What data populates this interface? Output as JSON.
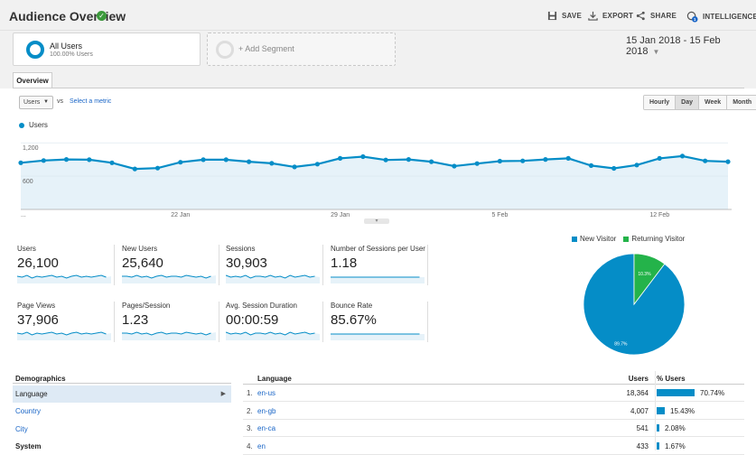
{
  "header": {
    "title": "Audience Overview",
    "save": "SAVE",
    "export": "EXPORT",
    "share": "SHARE",
    "intelligence": "INTELLIGENCE",
    "intelligence_badge": "1"
  },
  "segments": {
    "active": {
      "name": "All Users",
      "sub": "100.00% Users"
    },
    "add": "+ Add Segment"
  },
  "date_range": "15 Jan 2018 - 15 Feb 2018",
  "tabs": [
    "Overview"
  ],
  "chart_controls": {
    "metric": "Users",
    "vs": "vs",
    "select_metric": "Select a metric",
    "granularity": [
      "Hourly",
      "Day",
      "Week",
      "Month"
    ],
    "active_granularity": "Day"
  },
  "chart_data": {
    "type": "line",
    "series": [
      {
        "name": "Users",
        "values": [
          840,
          880,
          900,
          895,
          840,
          730,
          745,
          850,
          895,
          895,
          860,
          830,
          765,
          815,
          920,
          950,
          890,
          900,
          860,
          780,
          825,
          870,
          875,
          900,
          920,
          790,
          740,
          800,
          920,
          960,
          875,
          860
        ]
      }
    ],
    "ylim": [
      0,
      1300
    ],
    "y_ticks": [
      "1,200",
      "600"
    ],
    "x_ticks": [
      "...",
      "22 Jan",
      "29 Jan",
      "5 Feb",
      "12 Feb"
    ],
    "grid": true,
    "color": "#058dc7"
  },
  "stats": [
    {
      "label": "Users",
      "value": "26,100"
    },
    {
      "label": "New Users",
      "value": "25,640"
    },
    {
      "label": "Sessions",
      "value": "30,903"
    },
    {
      "label": "Number of Sessions per User",
      "value": "1.18"
    },
    {
      "label": "Page Views",
      "value": "37,906"
    },
    {
      "label": "Pages/Session",
      "value": "1.23"
    },
    {
      "label": "Avg. Session Duration",
      "value": "00:00:59"
    },
    {
      "label": "Bounce Rate",
      "value": "85.67%"
    }
  ],
  "pie": {
    "legend": [
      {
        "name": "New Visitor",
        "color": "#058dc7"
      },
      {
        "name": "Returning Visitor",
        "color": "#24b34a"
      }
    ],
    "slices": [
      {
        "label": "89.7%",
        "value": 89.7,
        "color": "#058dc7"
      },
      {
        "label": "10.3%",
        "value": 10.3,
        "color": "#24b34a"
      }
    ]
  },
  "demographics": {
    "title": "Demographics",
    "items": [
      "Language",
      "Country",
      "City"
    ],
    "next_section": "System"
  },
  "language_table": {
    "headers": {
      "language": "Language",
      "users": "Users",
      "pct": "% Users"
    },
    "rows": [
      {
        "n": "1.",
        "lang": "en-us",
        "users": "18,364",
        "pct": "70.74%",
        "fraction": 0.7074
      },
      {
        "n": "2.",
        "lang": "en-gb",
        "users": "4,007",
        "pct": "15.43%",
        "fraction": 0.1543
      },
      {
        "n": "3.",
        "lang": "en-ca",
        "users": "541",
        "pct": "2.08%",
        "fraction": 0.0208
      },
      {
        "n": "4.",
        "lang": "en",
        "users": "433",
        "pct": "1.67%",
        "fraction": 0.0167
      }
    ]
  }
}
